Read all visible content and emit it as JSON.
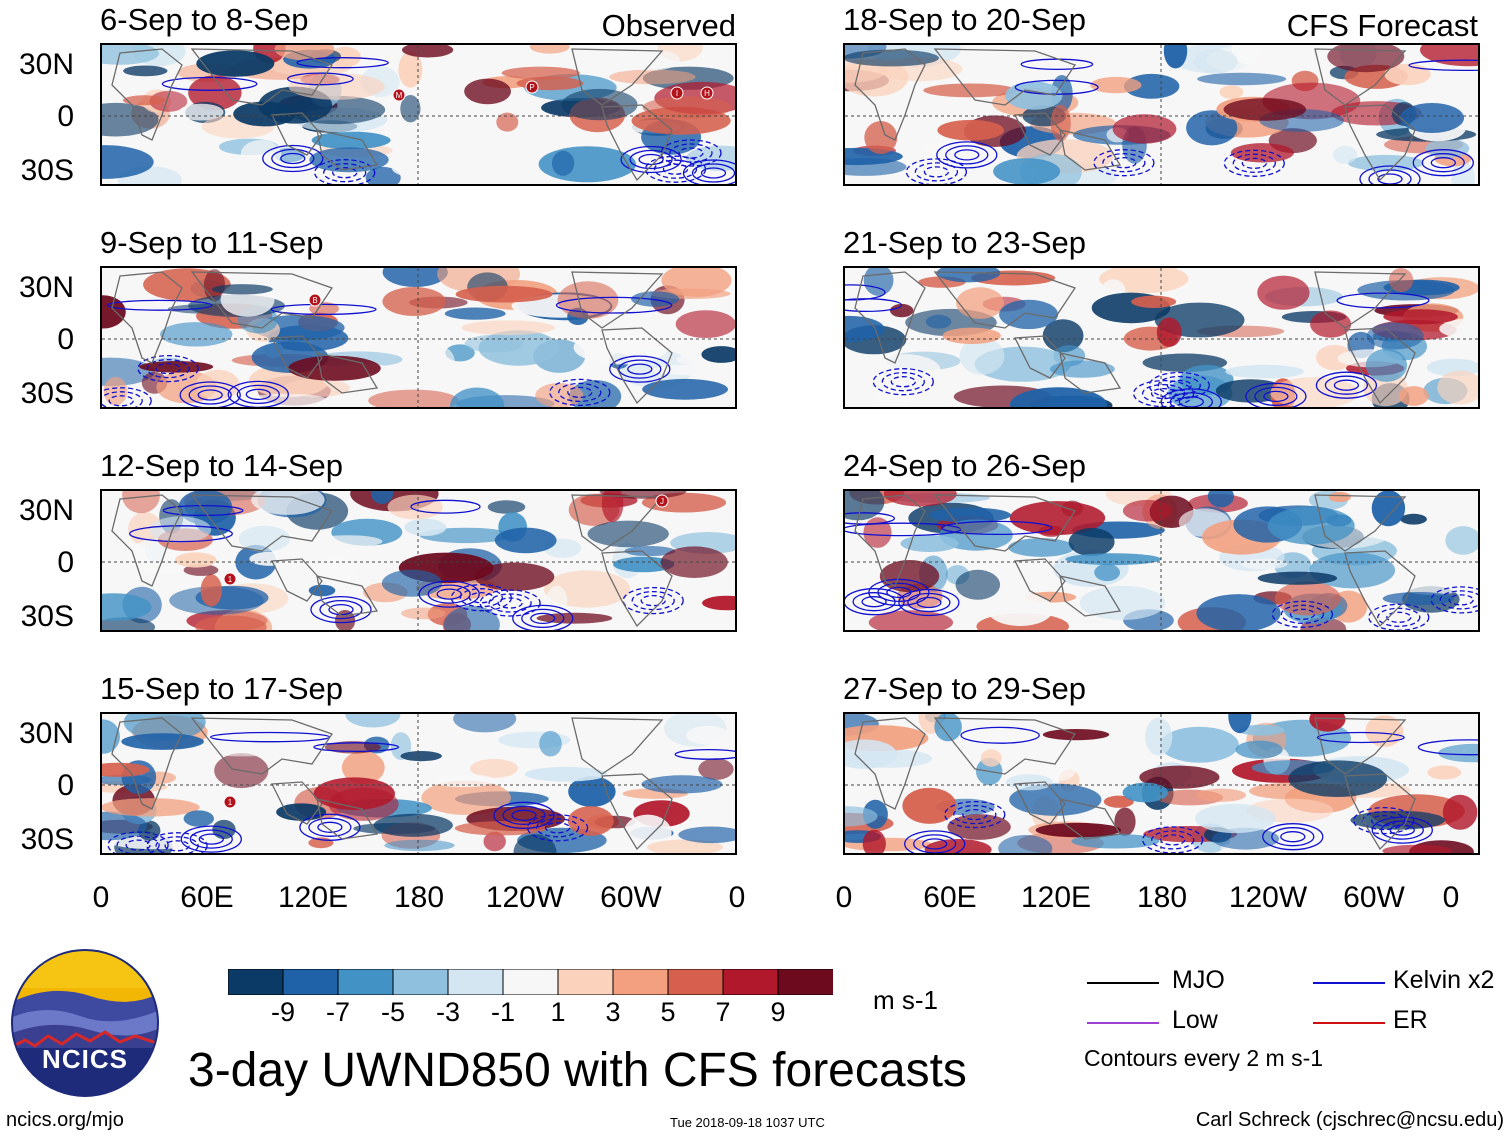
{
  "panels": {
    "left": [
      {
        "title": "6-Sep to 8-Sep",
        "corner": "Observed"
      },
      {
        "title": "9-Sep to 11-Sep",
        "corner": ""
      },
      {
        "title": "12-Sep to 14-Sep",
        "corner": ""
      },
      {
        "title": "15-Sep to 17-Sep",
        "corner": ""
      }
    ],
    "right": [
      {
        "title": "18-Sep to 20-Sep",
        "corner": "CFS Forecast"
      },
      {
        "title": "21-Sep to 23-Sep",
        "corner": ""
      },
      {
        "title": "24-Sep to 26-Sep",
        "corner": ""
      },
      {
        "title": "27-Sep to 29-Sep",
        "corner": ""
      }
    ]
  },
  "axes": {
    "lat_labels": [
      "30N",
      "0",
      "30S"
    ],
    "lon_labels": [
      "0",
      "60E",
      "120E",
      "180",
      "120W",
      "60W",
      "0"
    ]
  },
  "colorbar": {
    "ticks": [
      "-9",
      "-7",
      "-5",
      "-3",
      "-1",
      "1",
      "3",
      "5",
      "7",
      "9"
    ],
    "units": "m s-1",
    "colors": [
      "#0b3a66",
      "#1f62a8",
      "#4292c6",
      "#8fc0de",
      "#d3e6f2",
      "#f7f7f7",
      "#fbd2bc",
      "#f2a07f",
      "#d6604d",
      "#b2182b",
      "#6d0a1e"
    ]
  },
  "legend": {
    "items": [
      {
        "label": "MJO",
        "color": "#000000"
      },
      {
        "label": "Kelvin x2",
        "color": "#1010d0"
      },
      {
        "label": "Low",
        "color": "#a040d0"
      },
      {
        "label": "ER",
        "color": "#d01010"
      }
    ],
    "note": "Contours every 2 m s-1"
  },
  "title": "3-day UWND850 with CFS forecasts",
  "logo_text": "NCICS",
  "footer": {
    "url": "ncics.org/mjo",
    "timestamp": "Tue 2018-09-18 1037 UTC",
    "credit": "Carl Schreck (cjschrec@ncsu.edu)"
  },
  "storm_markers": [
    {
      "panel": "left-0",
      "label": "M"
    },
    {
      "panel": "left-0",
      "label": "P"
    },
    {
      "panel": "left-0",
      "label": "I"
    },
    {
      "panel": "left-0",
      "label": "H"
    },
    {
      "panel": "left-1",
      "label": "B"
    },
    {
      "panel": "left-2",
      "label": "1"
    },
    {
      "panel": "left-2",
      "label": "J"
    },
    {
      "panel": "left-3",
      "label": "1"
    }
  ]
}
